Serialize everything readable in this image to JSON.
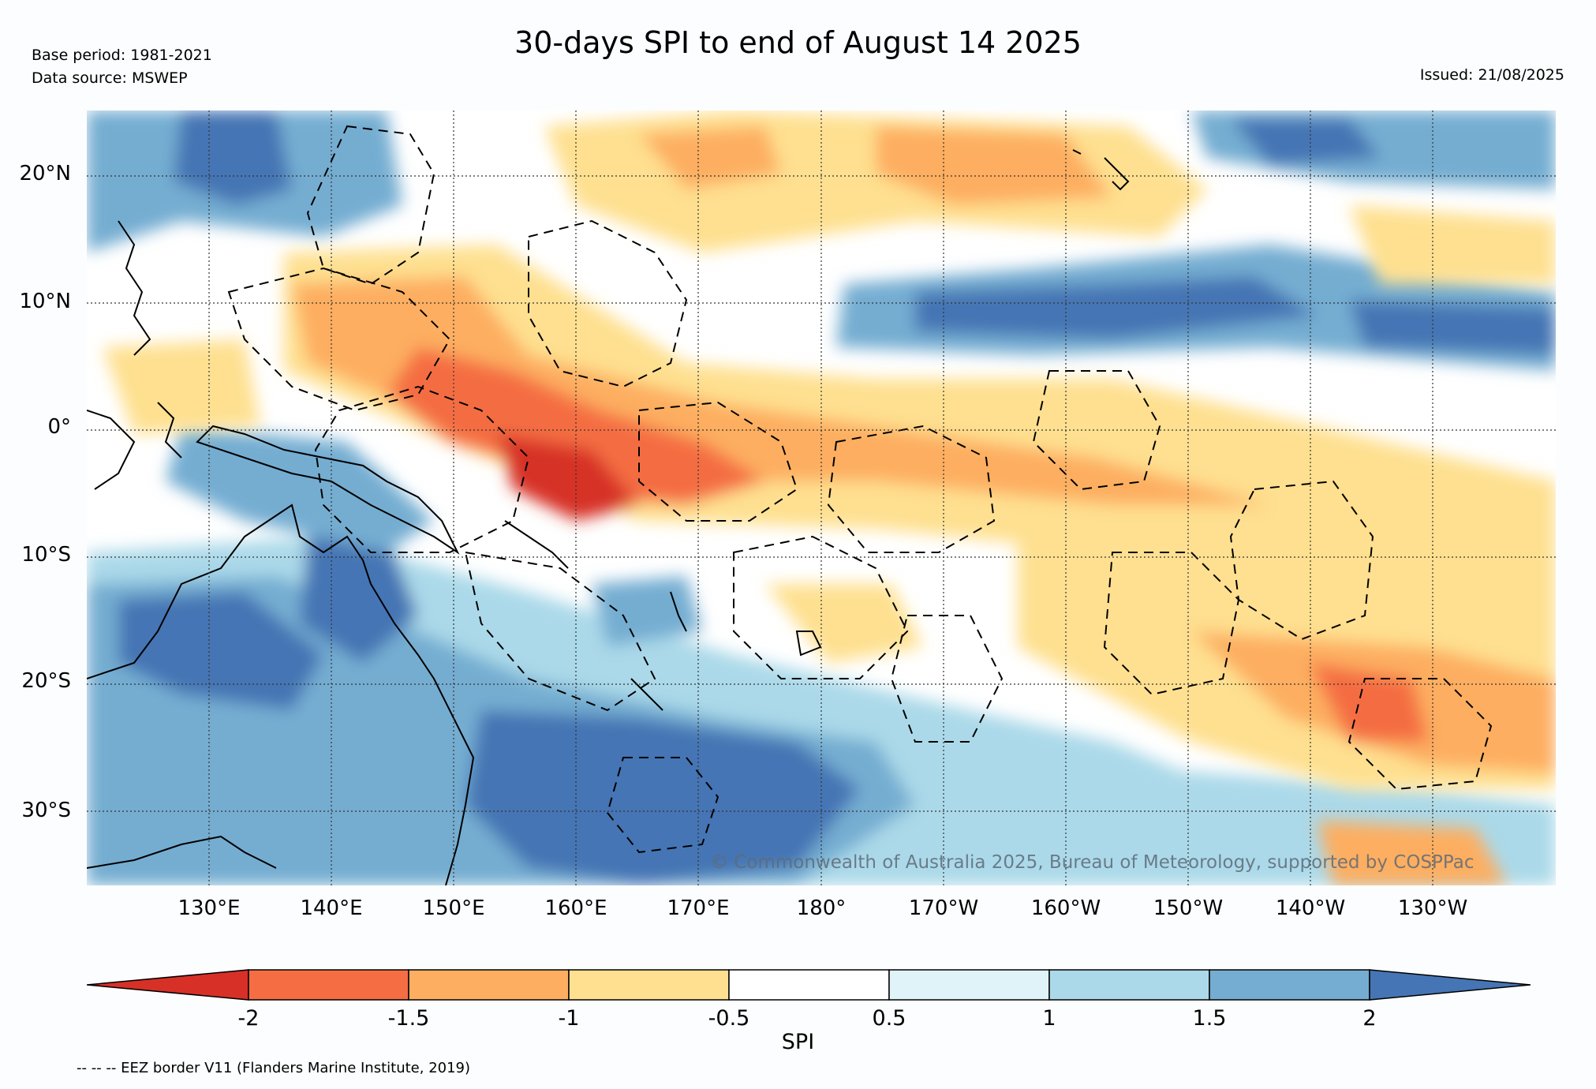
{
  "header": {
    "base_period": "Base period: 1981-2021",
    "data_source": "Data source: MSWEP",
    "title": "30-days SPI to end of August 14 2025",
    "issued": "Issued: 21/08/2025"
  },
  "map": {
    "lat_labels": [
      "20°N",
      "10°N",
      "0°",
      "10°S",
      "20°S",
      "30°S"
    ],
    "lon_labels": [
      "130°E",
      "140°E",
      "150°E",
      "160°E",
      "170°E",
      "180°",
      "170°W",
      "160°W",
      "150°W",
      "140°W",
      "130°W"
    ],
    "copyright": "© Commonwealth of Australia 2025, Bureau of Meteorology, supported by COSPPac",
    "extent": {
      "lon": [
        120,
        240
      ],
      "lat": [
        -36,
        25
      ]
    }
  },
  "colorbar": {
    "ticks": [
      "-2",
      "-1.5",
      "-1",
      "-0.5",
      "0.5",
      "1",
      "1.5",
      "2"
    ],
    "label": "SPI",
    "colors": [
      "#d73027",
      "#f46d43",
      "#fdae61",
      "#fee090",
      "#ffffff",
      "#e0f3f8",
      "#abd9e9",
      "#74add1",
      "#4575b4"
    ]
  },
  "footnote": "-- -- -- EEZ border V11 (Flanders Marine Institute, 2019)"
}
